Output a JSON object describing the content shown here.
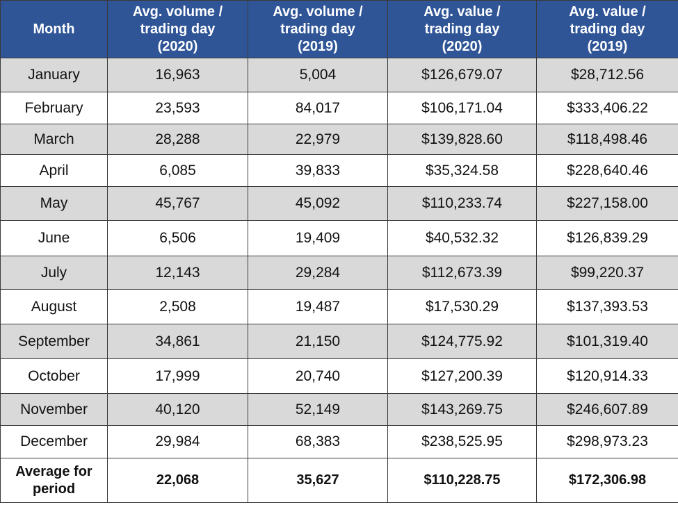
{
  "table": {
    "header": [
      "Month",
      "Avg. volume /\ntrading day\n(2020)",
      "Avg. volume /\ntrading day\n(2019)",
      "Avg. value /\ntrading day\n(2020)",
      "Avg. value /\ntrading day\n(2019)"
    ],
    "rows": [
      [
        "January",
        "16,963",
        "5,004",
        "$126,679.07",
        "$28,712.56"
      ],
      [
        "February",
        "23,593",
        "84,017",
        "$106,171.04",
        "$333,406.22"
      ],
      [
        "March",
        "28,288",
        "22,979",
        "$139,828.60",
        "$118,498.46"
      ],
      [
        "April",
        "6,085",
        "39,833",
        "$35,324.58",
        "$228,640.46"
      ],
      [
        "May",
        "45,767",
        "45,092",
        "$110,233.74",
        "$227,158.00"
      ],
      [
        "June",
        "6,506",
        "19,409",
        "$40,532.32",
        "$126,839.29"
      ],
      [
        "July",
        "12,143",
        "29,284",
        "$112,673.39",
        "$99,220.37"
      ],
      [
        "August",
        "2,508",
        "19,487",
        "$17,530.29",
        "$137,393.53"
      ],
      [
        "September",
        "34,861",
        "21,150",
        "$124,775.92",
        "$101,319.40"
      ],
      [
        "October",
        "17,999",
        "20,740",
        "$127,200.39",
        "$120,914.33"
      ],
      [
        "November",
        "40,120",
        "52,149",
        "$143,269.75",
        "$246,607.89"
      ],
      [
        "December",
        "29,984",
        "68,383",
        "$238,525.95",
        "$298,973.23"
      ]
    ],
    "footer": [
      "Average for\nperiod",
      "22,068",
      "35,627",
      "$110,228.75",
      "$172,306.98"
    ]
  }
}
